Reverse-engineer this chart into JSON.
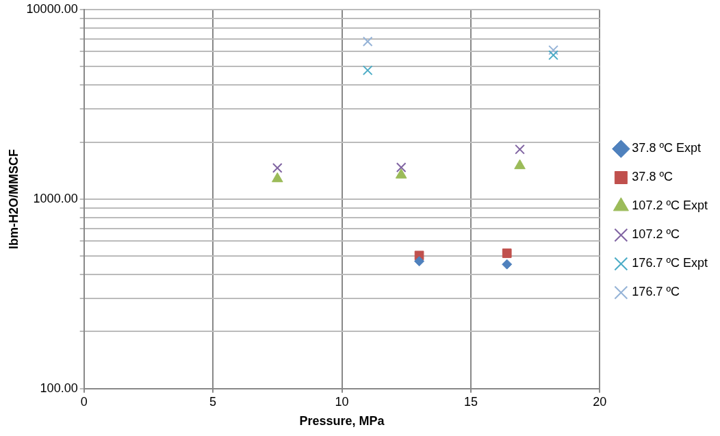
{
  "chart_data": {
    "type": "scatter",
    "xlabel": "Pressure, MPa",
    "ylabel": "lbm-H2O/MMSCF",
    "log": "y",
    "grid": true,
    "legend": "right",
    "xlim": [
      0,
      20
    ],
    "xticks": [
      0,
      5,
      10,
      15,
      20
    ],
    "ylim": [
      100,
      10000
    ],
    "yticks": [
      {
        "value": 100,
        "label": "100.00"
      },
      {
        "value": 200,
        "label": null
      },
      {
        "value": 300,
        "label": null
      },
      {
        "value": 400,
        "label": null
      },
      {
        "value": 500,
        "label": null
      },
      {
        "value": 600,
        "label": null
      },
      {
        "value": 700,
        "label": null
      },
      {
        "value": 800,
        "label": null
      },
      {
        "value": 900,
        "label": null
      },
      {
        "value": 1000,
        "label": "1000.00"
      },
      {
        "value": 2000,
        "label": null
      },
      {
        "value": 3000,
        "label": null
      },
      {
        "value": 4000,
        "label": null
      },
      {
        "value": 5000,
        "label": null
      },
      {
        "value": 6000,
        "label": null
      },
      {
        "value": 7000,
        "label": null
      },
      {
        "value": 8000,
        "label": null
      },
      {
        "value": 9000,
        "label": null
      },
      {
        "value": 10000,
        "label": "10000.00"
      }
    ],
    "series": [
      {
        "name": "37.8 ºC Expt",
        "color": "#4f81bd",
        "marker": "diamond",
        "x": [
          13.0,
          16.4
        ],
        "values": [
          470,
          453
        ]
      },
      {
        "name": "37.8 ºC",
        "color": "#c0504d",
        "marker": "square",
        "x": [
          13.0,
          16.4
        ],
        "values": [
          504,
          518
        ]
      },
      {
        "name": "107.2 ºC Expt",
        "color": "#9bbb59",
        "marker": "triangle",
        "x": [
          7.5,
          12.3,
          16.9
        ],
        "values": [
          1280,
          1340,
          1500
        ]
      },
      {
        "name": "107.2 ºC",
        "color": "#8064a2",
        "marker": "cross",
        "x": [
          7.5,
          12.3,
          16.9
        ],
        "values": [
          1460,
          1470,
          1830
        ]
      },
      {
        "name": "176.7 ºC Expt",
        "color": "#4bacc6",
        "marker": "cross",
        "x": [
          11.0,
          18.2
        ],
        "values": [
          4780,
          5750
        ]
      },
      {
        "name": "176.7 ºC",
        "color": "#95b3d7",
        "marker": "cross",
        "x": [
          11.0,
          18.2
        ],
        "values": [
          6790,
          6110
        ]
      }
    ]
  }
}
